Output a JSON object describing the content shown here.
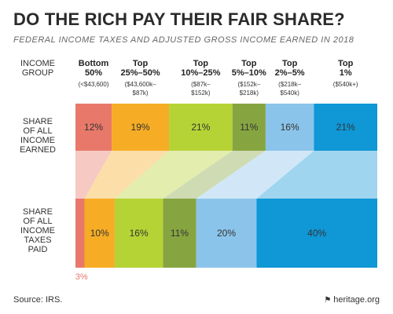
{
  "title": "DO THE RICH PAY THEIR FAIR SHARE?",
  "subtitle": "FEDERAL INCOME TAXES AND ADJUSTED GROSS INCOME EARNED IN 2018",
  "source": "Source: IRS.",
  "brand": "heritage.org",
  "brand_icon": "flag-icon",
  "chart_data": {
    "type": "bar",
    "orientation": "horizontal-stacked",
    "group_header": [
      "INCOME",
      "GROUP"
    ],
    "categories": [
      {
        "name": [
          "Bottom",
          "50%"
        ],
        "range": [
          "(<$43,600)"
        ],
        "color": "#e8796a"
      },
      {
        "name": [
          "Top",
          "25%–50%"
        ],
        "range": [
          "($43,600k–",
          "$87k)"
        ],
        "color": "#f6ad25"
      },
      {
        "name": [
          "Top",
          "10%–25%"
        ],
        "range": [
          "($87k–",
          "$152k)"
        ],
        "color": "#b6d335"
      },
      {
        "name": [
          "Top",
          "5%–10%"
        ],
        "range": [
          "($152k–",
          "$218k)"
        ],
        "color": "#86a541"
      },
      {
        "name": [
          "Top",
          "2%–5%"
        ],
        "range": [
          "($218k–",
          "$540k)"
        ],
        "color": "#8bc4ea"
      },
      {
        "name": [
          "Top",
          "1%"
        ],
        "range": [
          "($540k+)"
        ],
        "color": "#0f97d6"
      }
    ],
    "series": [
      {
        "name": [
          "SHARE",
          "OF ALL",
          "INCOME",
          "EARNED"
        ],
        "values": [
          12,
          19,
          21,
          11,
          16,
          21
        ],
        "labels": [
          "12%",
          "19%",
          "21%",
          "11%",
          "16%",
          "21%"
        ]
      },
      {
        "name": [
          "SHARE",
          "OF ALL",
          "INCOME",
          "TAXES",
          "PAID"
        ],
        "values": [
          3,
          10,
          16,
          11,
          20,
          40
        ],
        "labels": [
          "3%",
          "10%",
          "16%",
          "11%",
          "20%",
          "40%"
        ]
      }
    ],
    "small_label_color": "#e8796a"
  }
}
